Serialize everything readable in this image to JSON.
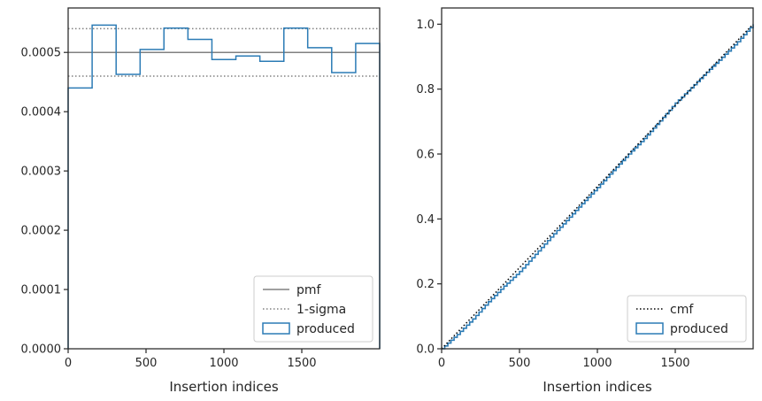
{
  "colors": {
    "produced": "#2b7bb5",
    "pmf": "#808080",
    "sigma": "#808080",
    "cmf": "#000000",
    "axes": "#262626"
  },
  "chart_data": [
    {
      "type": "histogram-step",
      "xlabel": "Insertion indices",
      "ylabel": "",
      "xlim": [
        0,
        2000
      ],
      "ylim": [
        0,
        0.000575
      ],
      "xticks": [
        0,
        500,
        1000,
        1500
      ],
      "xtick_labels": [
        "0",
        "500",
        "1000",
        "1500"
      ],
      "yticks": [
        0,
        0.0001,
        0.0002,
        0.0003,
        0.0004,
        0.0005
      ],
      "ytick_labels": [
        "0.0000",
        "0.0001",
        "0.0002",
        "0.0003",
        "0.0004",
        "0.0005"
      ],
      "bin_edges": [
        0,
        154,
        308,
        462,
        615,
        769,
        923,
        1077,
        1231,
        1385,
        1538,
        1692,
        1846,
        2000
      ],
      "series": [
        {
          "name": "produced",
          "values": [
            0.00044,
            0.000546,
            0.000463,
            0.000505,
            0.000541,
            0.000522,
            0.000488,
            0.000494,
            0.000485,
            0.000541,
            0.000508,
            0.000466,
            0.000515
          ]
        }
      ],
      "reference_lines": [
        {
          "name": "pmf",
          "value": 0.0005,
          "style": "solid"
        },
        {
          "name": "1-sigma",
          "value": 0.00054,
          "style": "dotted"
        },
        {
          "name": "1-sigma",
          "value": 0.00046,
          "style": "dotted"
        }
      ],
      "legend": {
        "position": "lower-right",
        "entries": [
          {
            "label": "pmf",
            "kind": "line-solid"
          },
          {
            "label": "1-sigma",
            "kind": "line-dotted"
          },
          {
            "label": "produced",
            "kind": "patch"
          }
        ]
      }
    },
    {
      "type": "line",
      "xlabel": "Insertion indices",
      "ylabel": "",
      "xlim": [
        0,
        2000
      ],
      "ylim": [
        0,
        1.05
      ],
      "xticks": [
        0,
        500,
        1000,
        1500
      ],
      "xtick_labels": [
        "0",
        "500",
        "1000",
        "1500"
      ],
      "yticks": [
        0,
        0.2,
        0.4,
        0.6,
        0.8,
        1.0
      ],
      "ytick_labels": [
        "0.0",
        "0.2",
        "0.4",
        "0.6",
        "0.8",
        "1.0"
      ],
      "series": [
        {
          "name": "cmf",
          "style": "dotted",
          "x": [
            0,
            2000
          ],
          "values": [
            0,
            1.0
          ]
        },
        {
          "name": "produced",
          "style": "step",
          "x": [
            0,
            100,
            200,
            300,
            400,
            500,
            600,
            700,
            800,
            900,
            1000,
            1100,
            1200,
            1300,
            1400,
            1500,
            1600,
            1700,
            1800,
            1900,
            2000
          ],
          "values": [
            0,
            0.044,
            0.092,
            0.145,
            0.193,
            0.238,
            0.291,
            0.344,
            0.395,
            0.447,
            0.497,
            0.549,
            0.6,
            0.648,
            0.702,
            0.757,
            0.804,
            0.852,
            0.898,
            0.946,
            1.0
          ]
        }
      ],
      "legend": {
        "position": "lower-right",
        "entries": [
          {
            "label": "cmf",
            "kind": "line-dotted"
          },
          {
            "label": "produced",
            "kind": "patch"
          }
        ]
      }
    }
  ]
}
